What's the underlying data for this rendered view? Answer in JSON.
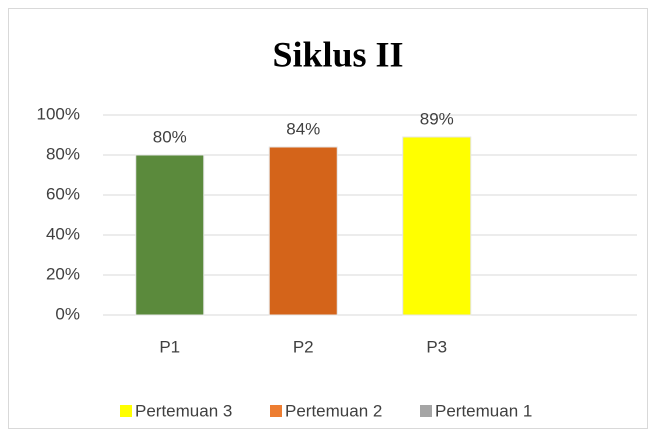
{
  "chart_data": {
    "type": "bar",
    "title": "Siklus II",
    "categories": [
      "P1",
      "P2",
      "P3",
      null
    ],
    "values": [
      80,
      84,
      89,
      null
    ],
    "value_labels": [
      "80%",
      "84%",
      "89%",
      null
    ],
    "colors": [
      "#5b8a3c",
      "#d4641a",
      "#ffff00",
      null
    ],
    "ylim": [
      0,
      100
    ],
    "yticks": [
      {
        "value": 0,
        "label": "0%"
      },
      {
        "value": 20,
        "label": "20%"
      },
      {
        "value": 40,
        "label": "40%"
      },
      {
        "value": 60,
        "label": "60%"
      },
      {
        "value": 80,
        "label": "80%"
      },
      {
        "value": 100,
        "label": "100%"
      }
    ],
    "grid": true,
    "legend_position": "bottom",
    "legend": [
      {
        "name": "Pertemuan 3",
        "color": "#ffff00"
      },
      {
        "name": "Pertemuan 2",
        "color": "#ed7d31"
      },
      {
        "name": "Pertemuan 1",
        "color": "#a5a5a5"
      }
    ]
  }
}
